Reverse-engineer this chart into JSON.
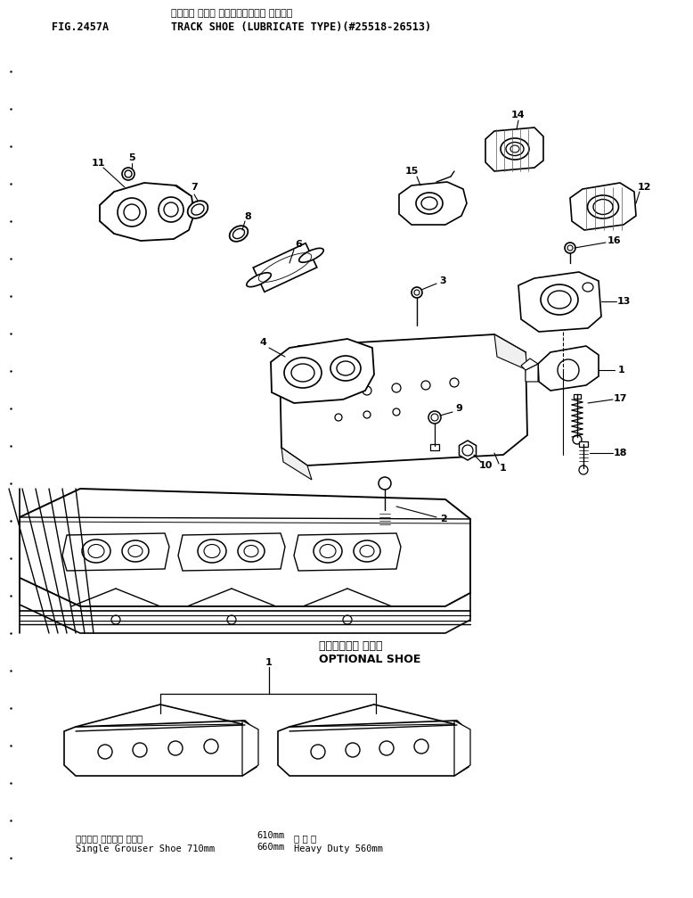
{
  "title_line1": "トラック シュー （ルーブリケート タイプ）",
  "title_line2": "TRACK SHOE (LUBRICATE TYPE)(#25518-26513)",
  "fig_label": "FIG.2457A",
  "optional_shoe_jp": "オプショナル シュー",
  "optional_shoe_en": "OPTIONAL SHOE",
  "label_left_jp": "シングル グローサ シュー",
  "label_left_en": "Single Grouser Shoe 710mm",
  "label_left_sizes": "610mm\n660mm",
  "label_right_jp": "重 切 岩",
  "label_right_en": "Heavy Duty 560mm",
  "bg_color": "#ffffff",
  "line_color": "#000000",
  "text_color": "#000000",
  "figsize": [
    7.78,
    10.07
  ],
  "dpi": 100
}
